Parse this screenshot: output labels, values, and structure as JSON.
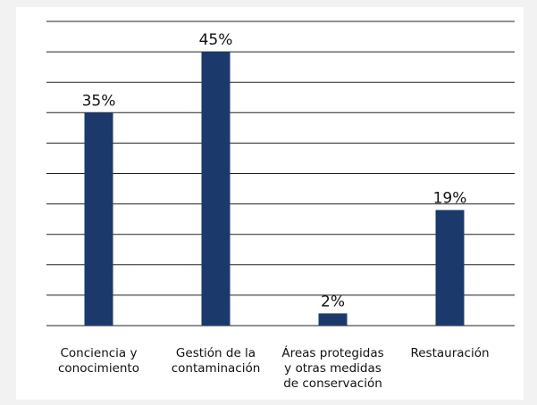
{
  "chart_data": {
    "type": "bar",
    "categories": [
      "Conciencia y\nconocimiento",
      "Gestión de la\ncontaminación",
      "Áreas protegidas\ny otras medidas\nde conservación",
      "Restauración"
    ],
    "values": [
      35,
      45,
      2,
      19
    ],
    "value_labels": [
      "35%",
      "45%",
      "2%",
      "19%"
    ],
    "color": "#1b3a6b",
    "ylim": [
      0,
      50
    ],
    "yticks": [
      0,
      5,
      10,
      15,
      20,
      25,
      30,
      35,
      40,
      45,
      50
    ],
    "grid": true
  }
}
